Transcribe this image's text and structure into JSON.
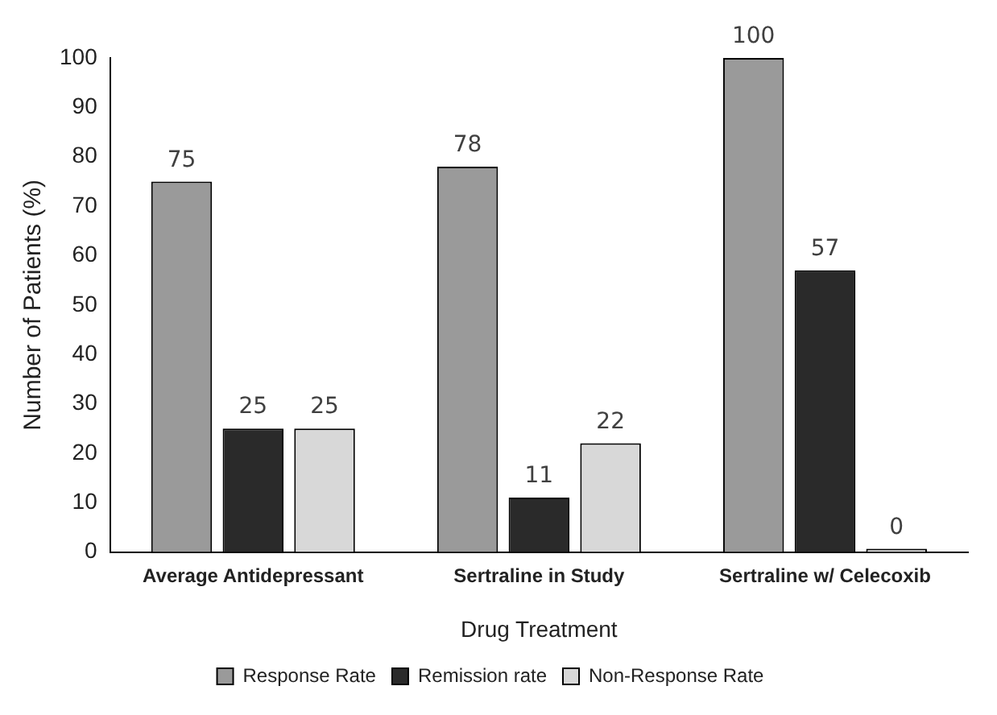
{
  "chart_data": {
    "type": "bar",
    "xlabel": "Drug Treatment",
    "ylabel": "Number of Patients (%)",
    "categories": [
      "Average Antidepressant",
      "Sertraline in Study",
      "Sertraline w/ Celecoxib"
    ],
    "series": [
      {
        "name": "Response Rate",
        "color": "#9a9a9a",
        "values": [
          75,
          78,
          100
        ]
      },
      {
        "name": "Remission rate",
        "color": "#2a2a2a",
        "values": [
          25,
          11,
          57
        ]
      },
      {
        "name": "Non-Response Rate",
        "color": "#d8d8d8",
        "values": [
          25,
          22,
          0
        ]
      }
    ],
    "ylim": [
      0,
      100
    ],
    "yticks": [
      0,
      10,
      20,
      30,
      40,
      50,
      60,
      70,
      80,
      90,
      100
    ],
    "grid": false,
    "legend": "bottom",
    "data_labels": true
  }
}
